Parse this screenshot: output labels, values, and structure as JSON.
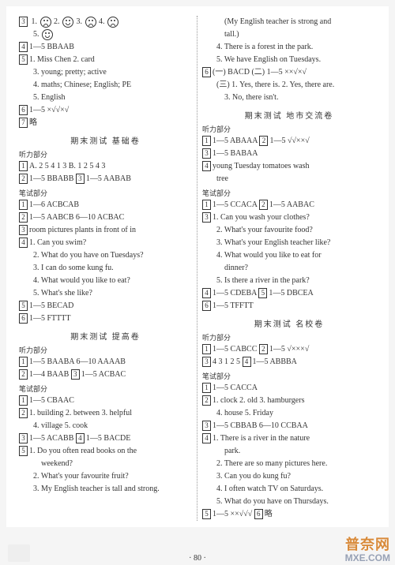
{
  "left": {
    "l1": {
      "n1": "3",
      "t1": "1.",
      "t2": "2.",
      "t3": "3.",
      "t4": "4."
    },
    "l2": {
      "t": "5."
    },
    "l3": {
      "n": "4",
      "t": "1—5  BBAAB"
    },
    "l4": {
      "n": "5",
      "t": "1. Miss Chen  2. card"
    },
    "l5": "3. young; pretty; active",
    "l6": "4. maths; Chinese; English; PE",
    "l7": "5. English",
    "l8": {
      "n": "6",
      "t": "1—5  ×√√×√"
    },
    "l9": {
      "n": "7",
      "t": "略"
    },
    "title1": "期末测试  基础卷",
    "sec1": "听力部分",
    "l10": {
      "n": "1",
      "t": "A. 2  5  4  1  3   B. 1  2  5  4  3"
    },
    "l11": {
      "n1": "2",
      "t1": "1—5  BBABB",
      "n2": "3",
      "t2": "1—5  AABAB"
    },
    "sec2": "笔试部分",
    "l12": {
      "n": "1",
      "t": "1—6  ACBCAB"
    },
    "l13": {
      "n": "2",
      "t": "1—5  AABCB  6—10  ACBAC"
    },
    "l14": {
      "n": "3",
      "t": "room  pictures  plants  in front of  in"
    },
    "l15": {
      "n": "4",
      "t": "1. Can you swim?"
    },
    "l16": "2. What do you have on Tuesdays?",
    "l17": "3. I can do some kung fu.",
    "l18": "4. What would you like to eat?",
    "l19": "5. What's she like?",
    "l20": {
      "n": "5",
      "t": "1—5  BECAD"
    },
    "l21": {
      "n": "6",
      "t": "1—5  FTTTT"
    },
    "title2": "期末测试  提高卷",
    "sec3": "听力部分",
    "l22": {
      "n": "1",
      "t": "1—5  BAABA  6—10  AAAAB"
    },
    "l23": {
      "n1": "2",
      "t1": "1—4  BAAB",
      "n2": "3",
      "t2": "1—5  ACBAC"
    },
    "sec4": "笔试部分",
    "l24": {
      "n": "1",
      "t": "1—5  CBAAC"
    },
    "l25": {
      "n": "2",
      "t": "1. building  2. between  3. helpful"
    },
    "l26": "4. village  5. cook",
    "l27": {
      "n1": "3",
      "t1": "1—5  ACABB",
      "n2": "4",
      "t2": "1—5  BACDE"
    },
    "l28": {
      "n": "5",
      "t": "1. Do you often read books on the"
    },
    "l29": "weekend?",
    "l30": "2. What's your favourite fruit?",
    "l31": "3. My English teacher is tall and strong."
  },
  "right": {
    "l1": "(My English teacher is strong and",
    "l2": "tall.)",
    "l3": "4. There is a forest in the park.",
    "l4": "5. We have English on Tuesdays.",
    "l5": {
      "n": "6",
      "t": "(一) BACD   (二) 1—5 ××√×√"
    },
    "l6": "(三) 1. Yes, there is.  2. Yes, there are.",
    "l7": "3. No, there isn't.",
    "title1": "期末测试  地市交流卷",
    "sec1": "听力部分",
    "l8": {
      "n1": "1",
      "t1": "1—5  ABAAA",
      "n2": "2",
      "t2": "1—5  √√××√"
    },
    "l9": {
      "n": "3",
      "t": "1—5  BABAA"
    },
    "l10": {
      "n": "4",
      "t": "young  Tuesday  tomatoes  wash"
    },
    "l11": "tree",
    "sec2": "笔试部分",
    "l12": {
      "n1": "1",
      "t1": "1—5  CCACA",
      "n2": "2",
      "t2": "1—5  AABAC"
    },
    "l13": {
      "n": "3",
      "t": "1. Can you wash your clothes?"
    },
    "l14": "2. What's your favourite food?",
    "l15": "3. What's your English teacher like?",
    "l16": "4. What would you like to eat for",
    "l17": "dinner?",
    "l18": "5. Is there a river in the park?",
    "l19": {
      "n1": "4",
      "t1": "1—5  CDEBA",
      "n2": "5",
      "t2": "1—5  DBCEA"
    },
    "l20": {
      "n": "6",
      "t": "1—5  TFFTT"
    },
    "title2": "期末测试  名校卷",
    "sec3": "听力部分",
    "l21": {
      "n1": "1",
      "t1": "1—5  CABCC",
      "n2": "2",
      "t2": "1—5  √×××√"
    },
    "l22": {
      "n1": "3",
      "t1": "4 3 1 2 5",
      "n2": "4",
      "t2": "1—5  ABBBA"
    },
    "sec4": "笔试部分",
    "l23": {
      "n": "1",
      "t": "1—5  CACCA"
    },
    "l24": {
      "n": "2",
      "t": "1. clock  2. old  3. hamburgers"
    },
    "l25": "4. house  5. Friday",
    "l26": {
      "n": "3",
      "t": "1—5  CBBAB  6—10  CCBAA"
    },
    "l27": {
      "n": "4",
      "t": "1. There is a river in the nature"
    },
    "l28": "park.",
    "l29": "2. There are so many pictures here.",
    "l30": "3. Can you do kung fu?",
    "l31": "4. I often watch TV on Saturdays.",
    "l32": "5. What do you have on Thursdays.",
    "l33": {
      "n1": "5",
      "t1": "1—5  ××√√√",
      "n2": "6",
      "t2": "略"
    }
  },
  "pagenum": "· 80 ·",
  "watermark": {
    "top": "普奈网",
    "bot": "MXE.COM"
  }
}
